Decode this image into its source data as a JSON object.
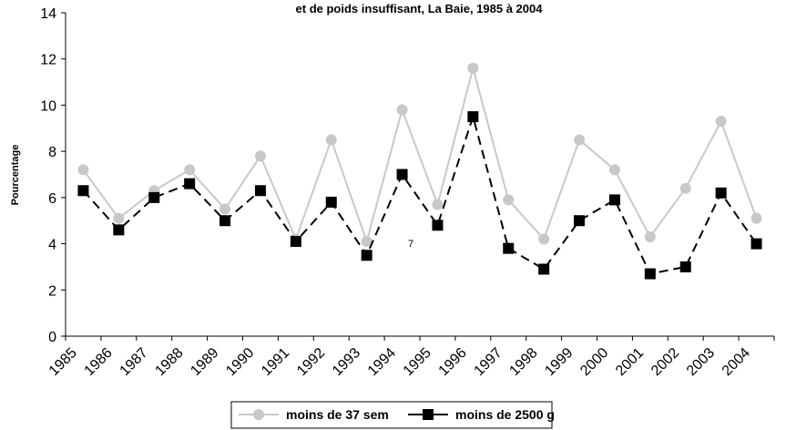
{
  "chart_data": {
    "type": "line",
    "title": "et de poids insuffisant, La Baie, 1985 à 2004",
    "y_label": "Pourcentage",
    "categories": [
      "1985",
      "1986",
      "1987",
      "1988",
      "1989",
      "1990",
      "1991",
      "1992",
      "1993",
      "1994",
      "1995",
      "1996",
      "1997",
      "1998",
      "1999",
      "2000",
      "2001",
      "2002",
      "2003",
      "2004"
    ],
    "series": [
      {
        "name": "moins de 37 sem",
        "color": "#c8c8c8",
        "marker": "circle",
        "dash": false,
        "values": [
          7.2,
          5.1,
          6.3,
          7.2,
          5.5,
          7.8,
          4.2,
          8.5,
          4.1,
          9.8,
          5.7,
          11.6,
          5.9,
          4.2,
          8.5,
          7.2,
          4.3,
          6.4,
          9.3,
          5.1
        ]
      },
      {
        "name": "moins de 2500 g",
        "color": "#000000",
        "marker": "square",
        "dash": true,
        "values": [
          6.3,
          4.6,
          6.0,
          6.6,
          5.0,
          6.3,
          4.1,
          5.8,
          3.5,
          7.0,
          4.8,
          9.5,
          3.8,
          2.9,
          5.0,
          5.9,
          2.7,
          3.0,
          6.2,
          4.0
        ]
      }
    ],
    "annotation": "7",
    "ylim": [
      0,
      14
    ],
    "yticks": [
      0,
      2,
      4,
      6,
      8,
      10,
      12,
      14
    ],
    "grid": false
  }
}
